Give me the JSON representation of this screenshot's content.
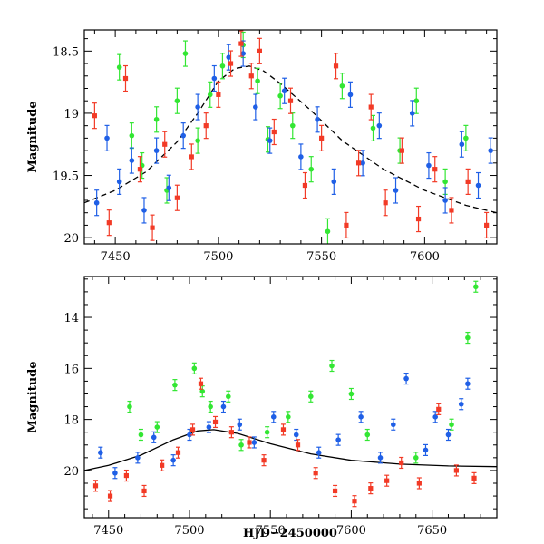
{
  "chart_data": [
    {
      "type": "scatter",
      "panel": "top",
      "title": "",
      "xlabel": "",
      "ylabel": "Magnitude",
      "xlim": [
        7435,
        7635
      ],
      "ylim": [
        20.05,
        18.33
      ],
      "y_inverted": true,
      "x_ticks": [
        7450,
        7500,
        7550,
        7600
      ],
      "y_ticks": [
        18.5,
        19,
        19.5,
        20
      ],
      "y_tick_labels": [
        "18.5",
        "19",
        "19.5",
        "20"
      ],
      "grid": false,
      "colors": {
        "green": "#33e633",
        "blue": "#1f5fe6",
        "red": "#f23a26",
        "model": "#000000"
      },
      "model_curve": {
        "style": "dashed",
        "x": [
          7435,
          7450,
          7465,
          7480,
          7490,
          7500,
          7508,
          7515,
          7522,
          7530,
          7545,
          7560,
          7580,
          7600,
          7620,
          7635
        ],
        "y": [
          19.72,
          19.62,
          19.47,
          19.23,
          19.0,
          18.74,
          18.64,
          18.62,
          18.66,
          18.76,
          18.98,
          19.22,
          19.45,
          19.62,
          19.74,
          19.8
        ]
      },
      "series": [
        {
          "color": "green",
          "x": [
            7452,
            7458,
            7463,
            7470,
            7475,
            7480,
            7484,
            7490,
            7496,
            7502,
            7512,
            7519,
            7524,
            7530,
            7536,
            7545,
            7553,
            7560,
            7575,
            7588,
            7596,
            7610,
            7620
          ],
          "y": [
            18.63,
            19.18,
            19.42,
            19.05,
            19.62,
            18.9,
            18.52,
            19.22,
            18.85,
            18.62,
            18.45,
            18.74,
            19.21,
            18.86,
            19.1,
            19.45,
            19.95,
            18.78,
            19.12,
            19.3,
            18.9,
            19.55,
            19.2
          ]
        },
        {
          "color": "blue",
          "x": [
            7441,
            7446,
            7452,
            7458,
            7464,
            7470,
            7476,
            7483,
            7490,
            7498,
            7505,
            7512,
            7518,
            7525,
            7532,
            7540,
            7548,
            7556,
            7564,
            7570,
            7578,
            7586,
            7594,
            7602,
            7610,
            7618,
            7626,
            7632
          ],
          "y": [
            19.72,
            19.2,
            19.55,
            19.38,
            19.78,
            19.3,
            19.6,
            19.18,
            18.95,
            18.72,
            18.55,
            18.52,
            18.95,
            19.22,
            18.82,
            19.35,
            19.05,
            19.55,
            18.85,
            19.4,
            19.1,
            19.62,
            19.0,
            19.42,
            19.7,
            19.25,
            19.58,
            19.3
          ]
        },
        {
          "color": "red",
          "x": [
            7440,
            7447,
            7455,
            7462,
            7468,
            7474,
            7480,
            7487,
            7494,
            7500,
            7506,
            7511,
            7516,
            7520,
            7527,
            7535,
            7542,
            7550,
            7557,
            7562,
            7568,
            7574,
            7581,
            7589,
            7597,
            7605,
            7613,
            7621,
            7630
          ],
          "y": [
            19.02,
            19.88,
            18.72,
            19.45,
            19.92,
            19.25,
            19.68,
            19.35,
            19.1,
            18.85,
            18.6,
            18.44,
            18.7,
            18.5,
            19.15,
            18.9,
            19.58,
            19.2,
            18.62,
            19.9,
            19.4,
            18.95,
            19.72,
            19.3,
            19.85,
            19.45,
            19.78,
            19.55,
            19.9
          ]
        }
      ]
    },
    {
      "type": "scatter",
      "panel": "bottom",
      "title": "",
      "xlabel": "HJD−2450000",
      "ylabel": "Magnitude",
      "xlim": [
        7435,
        7690
      ],
      "ylim": [
        21.85,
        12.4
      ],
      "y_inverted": true,
      "x_ticks": [
        7450,
        7500,
        7550,
        7600,
        7650
      ],
      "y_ticks": [
        14,
        16,
        18,
        20
      ],
      "grid": false,
      "colors": {
        "green": "#33e633",
        "blue": "#1f5fe6",
        "red": "#f23a26",
        "model": "#000000"
      },
      "model_curve": {
        "style": "solid",
        "x": [
          7435,
          7450,
          7470,
          7490,
          7505,
          7515,
          7530,
          7550,
          7575,
          7600,
          7630,
          7660,
          7690
        ],
        "y": [
          20.0,
          19.8,
          19.4,
          18.8,
          18.45,
          18.4,
          18.55,
          18.95,
          19.35,
          19.6,
          19.75,
          19.82,
          19.85
        ]
      },
      "series": [
        {
          "color": "green",
          "x": [
            7463,
            7470,
            7480,
            7491,
            7503,
            7508,
            7513,
            7524,
            7532,
            7548,
            7561,
            7575,
            7588,
            7600,
            7610,
            7640,
            7662,
            7672,
            7677
          ],
          "y": [
            17.5,
            18.6,
            18.3,
            16.65,
            16.0,
            16.9,
            17.5,
            17.1,
            19.0,
            18.5,
            17.9,
            17.1,
            15.9,
            17.0,
            18.6,
            19.5,
            18.2,
            14.8,
            12.8
          ]
        },
        {
          "color": "blue",
          "x": [
            7445,
            7454,
            7468,
            7478,
            7490,
            7500,
            7512,
            7521,
            7531,
            7540,
            7552,
            7566,
            7580,
            7592,
            7606,
            7618,
            7626,
            7634,
            7646,
            7652,
            7660,
            7668,
            7672
          ],
          "y": [
            19.3,
            20.1,
            19.5,
            18.7,
            19.6,
            18.6,
            18.3,
            17.5,
            18.2,
            18.9,
            17.9,
            18.6,
            19.3,
            18.8,
            17.9,
            19.5,
            18.2,
            16.4,
            19.2,
            17.9,
            18.6,
            17.4,
            16.6
          ]
        },
        {
          "color": "red",
          "x": [
            7442,
            7451,
            7461,
            7472,
            7483,
            7493,
            7502,
            7507,
            7516,
            7526,
            7537,
            7546,
            7558,
            7567,
            7578,
            7590,
            7602,
            7612,
            7622,
            7631,
            7642,
            7654,
            7665,
            7676
          ],
          "y": [
            20.6,
            21.0,
            20.2,
            20.8,
            19.8,
            19.3,
            18.4,
            16.6,
            18.1,
            18.5,
            18.9,
            19.6,
            18.4,
            19.0,
            20.1,
            20.8,
            21.2,
            20.7,
            20.4,
            19.7,
            20.5,
            17.6,
            20.0,
            20.3
          ]
        }
      ]
    }
  ]
}
